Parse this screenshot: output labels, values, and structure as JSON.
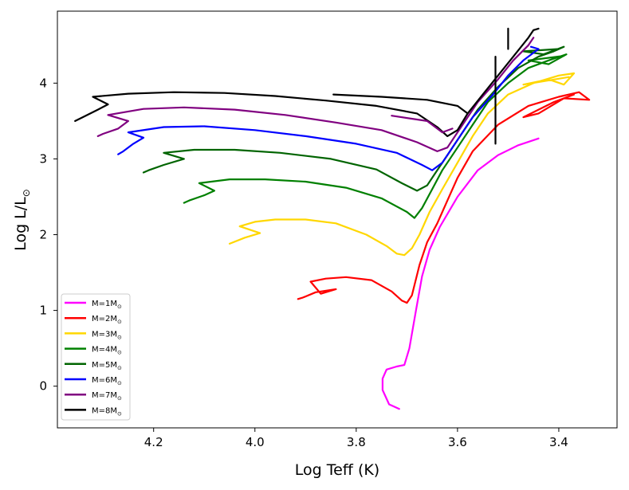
{
  "chart_data": {
    "type": "line",
    "title": "",
    "xlabel": "Log Teff (K)",
    "ylabel_main": "Log L/L",
    "ylabel_sub": "⊙",
    "xlim": [
      4.39,
      3.285
    ],
    "ylim": [
      -0.55,
      4.95
    ],
    "x_ticks": [
      {
        "value": 4.2,
        "label": "4.2"
      },
      {
        "value": 4.0,
        "label": "4.0"
      },
      {
        "value": 3.8,
        "label": "3.8"
      },
      {
        "value": 3.6,
        "label": "3.6"
      },
      {
        "value": 3.4,
        "label": "3.4"
      }
    ],
    "y_ticks": [
      {
        "value": 0,
        "label": "0"
      },
      {
        "value": 1,
        "label": "1"
      },
      {
        "value": 2,
        "label": "2"
      },
      {
        "value": 3,
        "label": "3"
      },
      {
        "value": 4,
        "label": "4"
      }
    ],
    "grid": false,
    "legend_position": "lower-left",
    "series": [
      {
        "name": "M=1M",
        "legend_main": "M=1M",
        "legend_sub": "⊙",
        "color": "#ff00ff",
        "points": [
          [
            3.715,
            -0.3
          ],
          [
            3.735,
            -0.24
          ],
          [
            3.748,
            -0.05
          ],
          [
            3.748,
            0.1
          ],
          [
            3.74,
            0.22
          ],
          [
            3.72,
            0.26
          ],
          [
            3.705,
            0.28
          ],
          [
            3.695,
            0.5
          ],
          [
            3.682,
            1.0
          ],
          [
            3.67,
            1.45
          ],
          [
            3.655,
            1.8
          ],
          [
            3.635,
            2.1
          ],
          [
            3.6,
            2.5
          ],
          [
            3.56,
            2.85
          ],
          [
            3.52,
            3.05
          ],
          [
            3.48,
            3.18
          ],
          [
            3.44,
            3.27
          ]
        ]
      },
      {
        "name": "M=2M",
        "legend_main": "M=2M",
        "legend_sub": "⊙",
        "color": "#ff0000",
        "points": [
          [
            3.915,
            1.15
          ],
          [
            3.905,
            1.17
          ],
          [
            3.88,
            1.24
          ],
          [
            3.84,
            1.28
          ],
          [
            3.87,
            1.22
          ],
          [
            3.89,
            1.38
          ],
          [
            3.86,
            1.42
          ],
          [
            3.82,
            1.44
          ],
          [
            3.77,
            1.4
          ],
          [
            3.73,
            1.25
          ],
          [
            3.71,
            1.13
          ],
          [
            3.7,
            1.1
          ],
          [
            3.69,
            1.2
          ],
          [
            3.675,
            1.6
          ],
          [
            3.66,
            1.9
          ],
          [
            3.64,
            2.15
          ],
          [
            3.62,
            2.45
          ],
          [
            3.6,
            2.75
          ],
          [
            3.57,
            3.1
          ],
          [
            3.52,
            3.45
          ],
          [
            3.46,
            3.7
          ],
          [
            3.4,
            3.82
          ],
          [
            3.36,
            3.88
          ],
          [
            3.34,
            3.78
          ],
          [
            3.39,
            3.8
          ],
          [
            3.44,
            3.6
          ],
          [
            3.47,
            3.55
          ],
          [
            3.41,
            3.75
          ],
          [
            3.37,
            3.85
          ]
        ]
      },
      {
        "name": "M=3M",
        "legend_main": "M=3M",
        "legend_sub": "⊙",
        "color": "#ffd700",
        "points": [
          [
            4.05,
            1.88
          ],
          [
            4.02,
            1.96
          ],
          [
            3.99,
            2.02
          ],
          [
            4.03,
            2.11
          ],
          [
            4.0,
            2.17
          ],
          [
            3.96,
            2.2
          ],
          [
            3.9,
            2.2
          ],
          [
            3.84,
            2.15
          ],
          [
            3.78,
            2.0
          ],
          [
            3.74,
            1.85
          ],
          [
            3.72,
            1.75
          ],
          [
            3.705,
            1.73
          ],
          [
            3.69,
            1.82
          ],
          [
            3.675,
            2.0
          ],
          [
            3.655,
            2.3
          ],
          [
            3.63,
            2.6
          ],
          [
            3.6,
            2.95
          ],
          [
            3.57,
            3.3
          ],
          [
            3.54,
            3.6
          ],
          [
            3.5,
            3.85
          ],
          [
            3.45,
            4.0
          ],
          [
            3.4,
            4.1
          ],
          [
            3.37,
            4.13
          ],
          [
            3.39,
            3.98
          ],
          [
            3.42,
            4.05
          ],
          [
            3.47,
            3.98
          ],
          [
            3.38,
            4.08
          ]
        ]
      },
      {
        "name": "M=4M",
        "legend_main": "M=4M",
        "legend_sub": "⊙",
        "color": "#008000",
        "points": [
          [
            4.14,
            2.42
          ],
          [
            4.13,
            2.45
          ],
          [
            4.1,
            2.52
          ],
          [
            4.08,
            2.58
          ],
          [
            4.11,
            2.68
          ],
          [
            4.05,
            2.73
          ],
          [
            3.98,
            2.73
          ],
          [
            3.9,
            2.7
          ],
          [
            3.82,
            2.62
          ],
          [
            3.75,
            2.48
          ],
          [
            3.7,
            2.3
          ],
          [
            3.685,
            2.22
          ],
          [
            3.67,
            2.35
          ],
          [
            3.65,
            2.6
          ],
          [
            3.63,
            2.85
          ],
          [
            3.6,
            3.15
          ],
          [
            3.57,
            3.45
          ],
          [
            3.54,
            3.75
          ],
          [
            3.5,
            4.0
          ],
          [
            3.46,
            4.2
          ],
          [
            3.42,
            4.3
          ],
          [
            3.385,
            4.38
          ],
          [
            3.42,
            4.25
          ],
          [
            3.46,
            4.3
          ],
          [
            3.39,
            4.36
          ]
        ]
      },
      {
        "name": "M=5M",
        "legend_main": "M=5M",
        "legend_sub": "⊙",
        "color": "#006400",
        "points": [
          [
            4.22,
            2.82
          ],
          [
            4.21,
            2.85
          ],
          [
            4.18,
            2.92
          ],
          [
            4.14,
            3.0
          ],
          [
            4.18,
            3.08
          ],
          [
            4.12,
            3.12
          ],
          [
            4.04,
            3.12
          ],
          [
            3.95,
            3.08
          ],
          [
            3.85,
            3.0
          ],
          [
            3.76,
            2.86
          ],
          [
            3.71,
            2.68
          ],
          [
            3.68,
            2.58
          ],
          [
            3.66,
            2.65
          ],
          [
            3.645,
            2.8
          ],
          [
            3.62,
            3.05
          ],
          [
            3.59,
            3.35
          ],
          [
            3.56,
            3.65
          ],
          [
            3.52,
            3.95
          ],
          [
            3.48,
            4.2
          ],
          [
            3.44,
            4.35
          ],
          [
            3.41,
            4.42
          ],
          [
            3.39,
            4.48
          ],
          [
            3.43,
            4.38
          ],
          [
            3.47,
            4.42
          ],
          [
            3.4,
            4.45
          ]
        ]
      },
      {
        "name": "M=6M",
        "legend_main": "M=6M",
        "legend_sub": "⊙",
        "color": "#0000ff",
        "points": [
          [
            4.27,
            3.06
          ],
          [
            4.26,
            3.1
          ],
          [
            4.24,
            3.2
          ],
          [
            4.22,
            3.28
          ],
          [
            4.25,
            3.35
          ],
          [
            4.18,
            3.42
          ],
          [
            4.1,
            3.43
          ],
          [
            4.0,
            3.38
          ],
          [
            3.9,
            3.3
          ],
          [
            3.8,
            3.2
          ],
          [
            3.72,
            3.08
          ],
          [
            3.67,
            2.92
          ],
          [
            3.65,
            2.85
          ],
          [
            3.63,
            2.95
          ],
          [
            3.6,
            3.25
          ],
          [
            3.57,
            3.55
          ],
          [
            3.53,
            3.85
          ],
          [
            3.5,
            4.1
          ],
          [
            3.47,
            4.3
          ],
          [
            3.44,
            4.45
          ],
          [
            3.455,
            4.48
          ]
        ]
      },
      {
        "name": "M=7M",
        "legend_main": "M=7M",
        "legend_sub": "⊙",
        "color": "#800080",
        "points": [
          [
            4.31,
            3.3
          ],
          [
            4.3,
            3.33
          ],
          [
            4.27,
            3.4
          ],
          [
            4.25,
            3.5
          ],
          [
            4.29,
            3.58
          ],
          [
            4.22,
            3.66
          ],
          [
            4.14,
            3.68
          ],
          [
            4.04,
            3.65
          ],
          [
            3.94,
            3.58
          ],
          [
            3.84,
            3.48
          ],
          [
            3.75,
            3.38
          ],
          [
            3.68,
            3.22
          ],
          [
            3.64,
            3.1
          ],
          [
            3.62,
            3.15
          ],
          [
            3.59,
            3.45
          ],
          [
            3.56,
            3.75
          ],
          [
            3.52,
            4.05
          ],
          [
            3.49,
            4.3
          ],
          [
            3.46,
            4.5
          ],
          [
            3.45,
            4.6
          ]
        ]
      },
      {
        "name": "M=8M",
        "legend_main": "M=8M",
        "legend_sub": "⊙",
        "color": "#000000",
        "points": [
          [
            4.355,
            3.5
          ],
          [
            4.34,
            3.55
          ],
          [
            4.31,
            3.65
          ],
          [
            4.29,
            3.72
          ],
          [
            4.32,
            3.82
          ],
          [
            4.25,
            3.86
          ],
          [
            4.16,
            3.88
          ],
          [
            4.06,
            3.87
          ],
          [
            3.96,
            3.83
          ],
          [
            3.86,
            3.77
          ],
          [
            3.76,
            3.7
          ],
          [
            3.68,
            3.6
          ],
          [
            3.64,
            3.42
          ],
          [
            3.62,
            3.3
          ],
          [
            3.6,
            3.38
          ],
          [
            3.58,
            3.6
          ],
          [
            3.55,
            3.85
          ],
          [
            3.52,
            4.1
          ],
          [
            3.49,
            4.35
          ],
          [
            3.46,
            4.6
          ],
          [
            3.45,
            4.7
          ],
          [
            3.44,
            4.72
          ]
        ]
      }
    ],
    "extra_segments": [
      {
        "color": "#000000",
        "points": [
          [
            3.845,
            3.85
          ],
          [
            3.75,
            3.82
          ],
          [
            3.66,
            3.78
          ],
          [
            3.6,
            3.7
          ],
          [
            3.58,
            3.6
          ]
        ]
      },
      {
        "color": "#800080",
        "points": [
          [
            3.73,
            3.57
          ],
          [
            3.66,
            3.5
          ],
          [
            3.63,
            3.35
          ],
          [
            3.61,
            3.4
          ]
        ]
      },
      {
        "color": "#000000",
        "points": [
          [
            3.5,
            4.45
          ],
          [
            3.5,
            4.72
          ]
        ]
      },
      {
        "color": "#000000",
        "points": [
          [
            3.525,
            3.2
          ],
          [
            3.525,
            4.35
          ]
        ]
      }
    ]
  }
}
